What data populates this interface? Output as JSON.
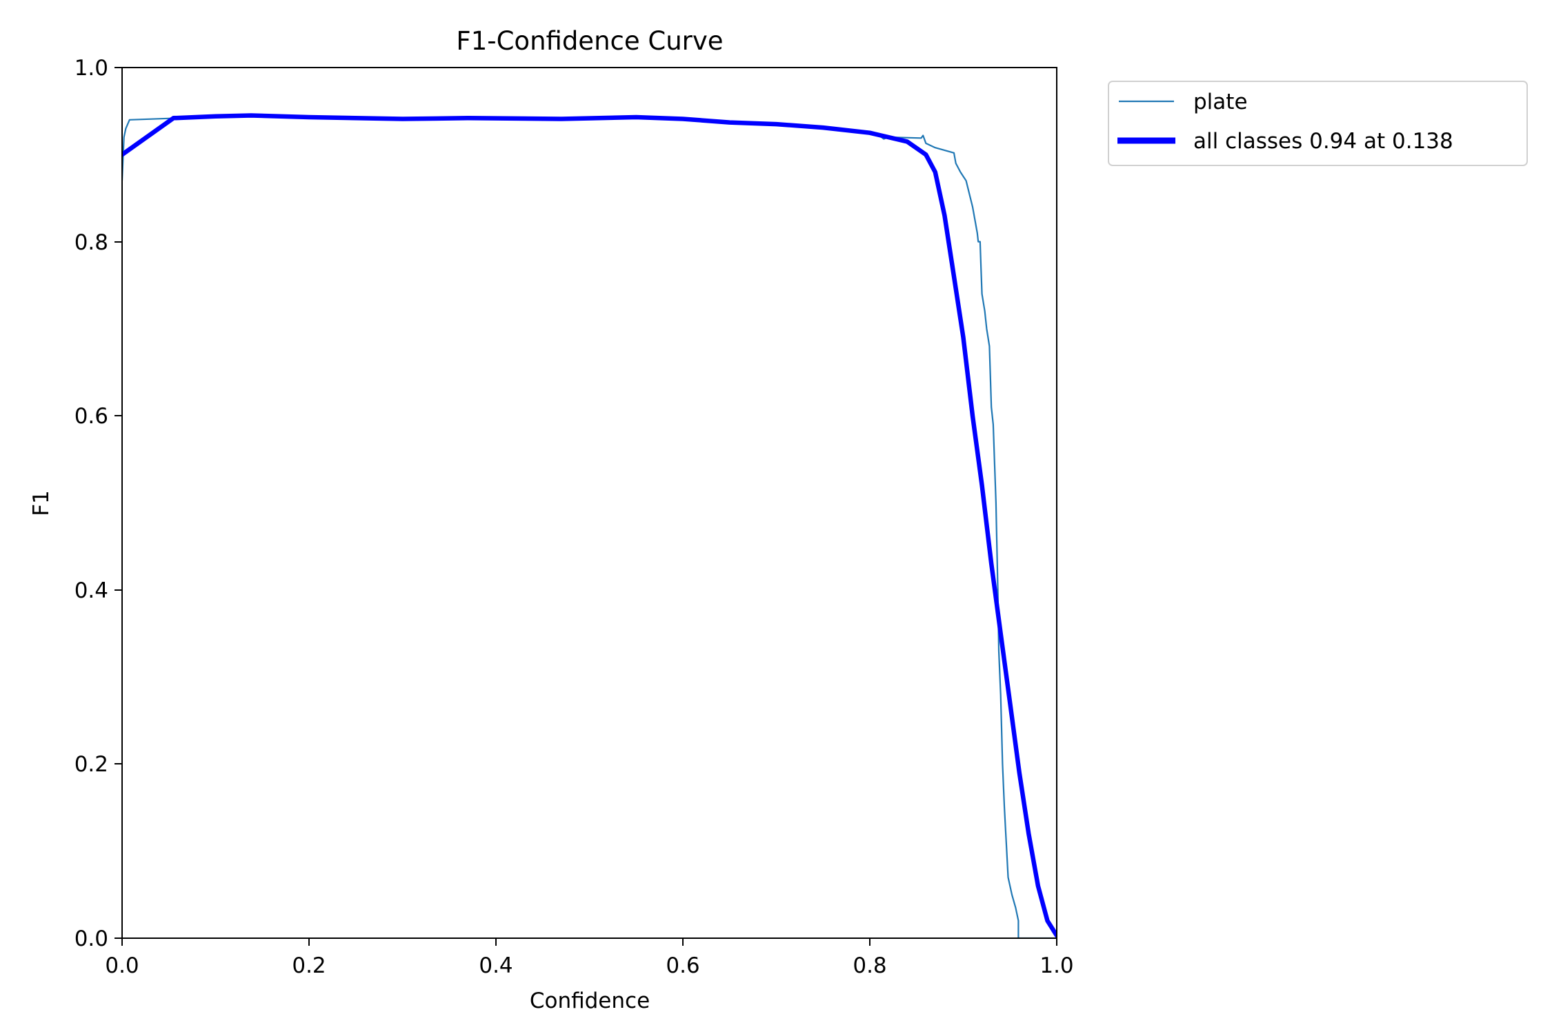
{
  "chart_data": {
    "type": "line",
    "title": "F1-Confidence Curve",
    "xlabel": "Confidence",
    "ylabel": "F1",
    "xlim": [
      0.0,
      1.0
    ],
    "ylim": [
      0.0,
      1.0
    ],
    "xticks": [
      "0.0",
      "0.2",
      "0.4",
      "0.6",
      "0.8",
      "1.0"
    ],
    "yticks": [
      "0.0",
      "0.2",
      "0.4",
      "0.6",
      "0.8",
      "1.0"
    ],
    "grid": false,
    "legend_position": "outside upper right",
    "series": [
      {
        "name": "plate",
        "color": "#1f77b4",
        "linewidth": 1,
        "x": [
          0.0,
          0.002,
          0.004,
          0.008,
          0.06,
          0.1,
          0.138,
          0.2,
          0.3,
          0.37,
          0.47,
          0.55,
          0.6,
          0.65,
          0.7,
          0.75,
          0.8,
          0.81,
          0.815,
          0.82,
          0.855,
          0.857,
          0.86,
          0.87,
          0.89,
          0.892,
          0.897,
          0.903,
          0.91,
          0.915,
          0.916,
          0.918,
          0.919,
          0.92,
          0.923,
          0.925,
          0.928,
          0.93,
          0.932,
          0.935,
          0.937,
          0.938,
          0.94,
          0.942,
          0.944,
          0.946,
          0.948,
          0.952,
          0.956,
          0.959,
          0.959,
          1.0
        ],
        "y": [
          0.87,
          0.92,
          0.93,
          0.94,
          0.942,
          0.944,
          0.945,
          0.943,
          0.941,
          0.942,
          0.941,
          0.943,
          0.941,
          0.937,
          0.935,
          0.931,
          0.925,
          0.922,
          0.918,
          0.92,
          0.919,
          0.922,
          0.913,
          0.908,
          0.902,
          0.89,
          0.88,
          0.87,
          0.84,
          0.81,
          0.8,
          0.8,
          0.77,
          0.74,
          0.72,
          0.7,
          0.68,
          0.61,
          0.59,
          0.5,
          0.4,
          0.33,
          0.28,
          0.2,
          0.15,
          0.11,
          0.07,
          0.05,
          0.035,
          0.02,
          0.0,
          0.0
        ]
      },
      {
        "name": "all classes 0.94 at 0.138",
        "color": "#0000ff",
        "linewidth": 3,
        "x": [
          0.0,
          0.055,
          0.1,
          0.138,
          0.2,
          0.3,
          0.37,
          0.47,
          0.55,
          0.6,
          0.65,
          0.7,
          0.75,
          0.8,
          0.84,
          0.86,
          0.87,
          0.88,
          0.89,
          0.9,
          0.91,
          0.92,
          0.93,
          0.94,
          0.95,
          0.96,
          0.97,
          0.98,
          0.99,
          1.0
        ],
        "y": [
          0.9,
          0.942,
          0.944,
          0.945,
          0.943,
          0.941,
          0.942,
          0.941,
          0.943,
          0.941,
          0.937,
          0.935,
          0.931,
          0.925,
          0.915,
          0.9,
          0.88,
          0.83,
          0.76,
          0.69,
          0.6,
          0.52,
          0.43,
          0.35,
          0.27,
          0.19,
          0.12,
          0.06,
          0.02,
          0.003
        ]
      }
    ],
    "annotations": {
      "best_f1": 0.94,
      "best_confidence": 0.138
    }
  },
  "legend": {
    "items": [
      {
        "label": "plate",
        "color": "#1f77b4"
      },
      {
        "label": "all classes 0.94 at 0.138",
        "color": "#0000ff"
      }
    ]
  }
}
